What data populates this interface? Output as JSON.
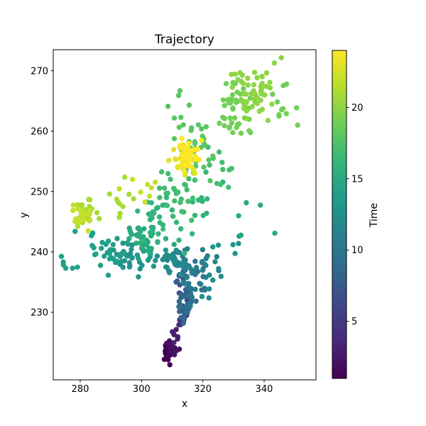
{
  "figure": {
    "background_color": "#ffffff",
    "axis_color": "#000000"
  },
  "chart_data": {
    "type": "scatter",
    "title": "Trajectory",
    "xlabel": "x",
    "ylabel": "y",
    "xlim": [
      271.2,
      356.9
    ],
    "ylim": [
      218.8,
      273.5
    ],
    "xticks": [
      280,
      300,
      320,
      340
    ],
    "yticks": [
      230,
      240,
      250,
      260,
      270
    ],
    "grid": false,
    "marker_radius_px": 3.7,
    "colorbar": {
      "label": "Time",
      "vmin": 1,
      "vmax": 24,
      "ticks": [
        5,
        10,
        15,
        20
      ],
      "colormap": "viridis",
      "position": "right"
    },
    "colormap_anchors": [
      "#440154",
      "#482878",
      "#3e4989",
      "#31688e",
      "#26828e",
      "#1f9e89",
      "#35b779",
      "#6ece58",
      "#b5de2b",
      "#fde725"
    ],
    "description": "Random-walk trajectory of ~680 points; color encodes time step t=1..24 (viridis). Points drawn in time order, estimated as gaussian clusters.",
    "n_points_total": 681,
    "time_range": [
      1,
      24
    ],
    "clusters_columns": [
      "t",
      "n",
      "cx",
      "cy",
      "sx",
      "sy"
    ],
    "clusters": [
      [
        1,
        16,
        308.7,
        223.2,
        0.9,
        0.8
      ],
      [
        2,
        14,
        310.0,
        224.4,
        1.0,
        0.8
      ],
      [
        3,
        7,
        311.2,
        226.3,
        0.7,
        0.7
      ],
      [
        4,
        7,
        312.6,
        228.4,
        0.7,
        0.8
      ],
      [
        5,
        9,
        314.2,
        230.3,
        0.9,
        0.9
      ],
      [
        6,
        8,
        315.4,
        232.2,
        0.8,
        0.8
      ],
      [
        7,
        9,
        314.6,
        233.9,
        0.9,
        0.8
      ],
      [
        8,
        12,
        313.8,
        235.6,
        1.1,
        0.8
      ],
      [
        9,
        26,
        314.0,
        230.6,
        1.5,
        1.2
      ],
      [
        10,
        14,
        315.6,
        233.2,
        1.2,
        1.1
      ],
      [
        10,
        12,
        319.5,
        236.5,
        1.5,
        1.5
      ],
      [
        11,
        22,
        313.5,
        237.5,
        1.8,
        1.3
      ],
      [
        11,
        12,
        320.5,
        238.5,
        1.8,
        1.8
      ],
      [
        12,
        25,
        310.0,
        238.5,
        2.5,
        1.5
      ],
      [
        12,
        8,
        322.5,
        235.5,
        1.5,
        1.3
      ],
      [
        13,
        40,
        297.5,
        239.3,
        4.0,
        1.5
      ],
      [
        13,
        6,
        327.0,
        240.0,
        2.0,
        1.0
      ],
      [
        14,
        30,
        290.0,
        240.3,
        4.5,
        1.6
      ],
      [
        14,
        6,
        276.5,
        238.0,
        1.5,
        0.9
      ],
      [
        15,
        35,
        301.0,
        242.5,
        4.0,
        1.6
      ],
      [
        15,
        5,
        337.0,
        245.0,
        2.5,
        1.5
      ],
      [
        16,
        30,
        307.0,
        245.0,
        3.5,
        2.0
      ],
      [
        16,
        12,
        320.0,
        247.5,
        2.5,
        2.2
      ],
      [
        17,
        30,
        311.5,
        249.5,
        3.0,
        2.2
      ],
      [
        17,
        10,
        325.0,
        252.5,
        3.0,
        2.5
      ],
      [
        18,
        30,
        318.0,
        257.0,
        3.0,
        2.5
      ],
      [
        18,
        10,
        313.0,
        261.5,
        2.0,
        2.0
      ],
      [
        19,
        45,
        331.0,
        263.5,
        3.0,
        2.5
      ],
      [
        19,
        12,
        347.0,
        263.5,
        3.5,
        2.5
      ],
      [
        20,
        45,
        335.5,
        266.5,
        3.5,
        2.2
      ],
      [
        20,
        6,
        341.0,
        270.0,
        2.5,
        1.2
      ],
      [
        21,
        30,
        281.3,
        246.2,
        2.2,
        1.3
      ],
      [
        21,
        10,
        293.0,
        247.5,
        3.0,
        2.0
      ],
      [
        22,
        20,
        280.5,
        245.5,
        1.8,
        1.0
      ],
      [
        22,
        8,
        300.0,
        250.0,
        3.0,
        1.8
      ],
      [
        23,
        25,
        314.0,
        255.3,
        2.0,
        1.2
      ],
      [
        24,
        35,
        315.3,
        256.2,
        1.8,
        1.1
      ]
    ]
  }
}
